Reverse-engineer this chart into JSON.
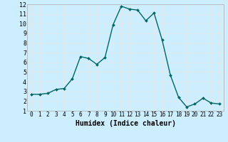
{
  "x": [
    0,
    1,
    2,
    3,
    4,
    5,
    6,
    7,
    8,
    9,
    10,
    11,
    12,
    13,
    14,
    15,
    16,
    17,
    18,
    19,
    20,
    21,
    22,
    23
  ],
  "y": [
    2.7,
    2.7,
    2.8,
    3.2,
    3.3,
    4.3,
    6.6,
    6.4,
    5.8,
    6.5,
    9.9,
    11.8,
    11.5,
    11.4,
    10.3,
    11.1,
    8.3,
    4.7,
    2.4,
    1.4,
    1.7,
    2.3,
    1.8,
    1.7
  ],
  "line_color": "#006666",
  "marker": "D",
  "marker_size": 2.0,
  "line_width": 1.0,
  "xlabel": "Humidex (Indice chaleur)",
  "xlim": [
    -0.5,
    23.5
  ],
  "ylim": [
    1,
    12
  ],
  "yticks": [
    1,
    2,
    3,
    4,
    5,
    6,
    7,
    8,
    9,
    10,
    11,
    12
  ],
  "xticks": [
    0,
    1,
    2,
    3,
    4,
    5,
    6,
    7,
    8,
    9,
    10,
    11,
    12,
    13,
    14,
    15,
    16,
    17,
    18,
    19,
    20,
    21,
    22,
    23
  ],
  "xtick_labels": [
    "0",
    "1",
    "2",
    "3",
    "4",
    "5",
    "6",
    "7",
    "8",
    "9",
    "10",
    "11",
    "12",
    "13",
    "14",
    "15",
    "16",
    "17",
    "18",
    "19",
    "20",
    "21",
    "22",
    "23"
  ],
  "background_color": "#cceeff",
  "grid_color": "#e8e8e8",
  "tick_fontsize": 5.5,
  "label_fontsize": 7.0,
  "ytick_fontsize": 6.0
}
